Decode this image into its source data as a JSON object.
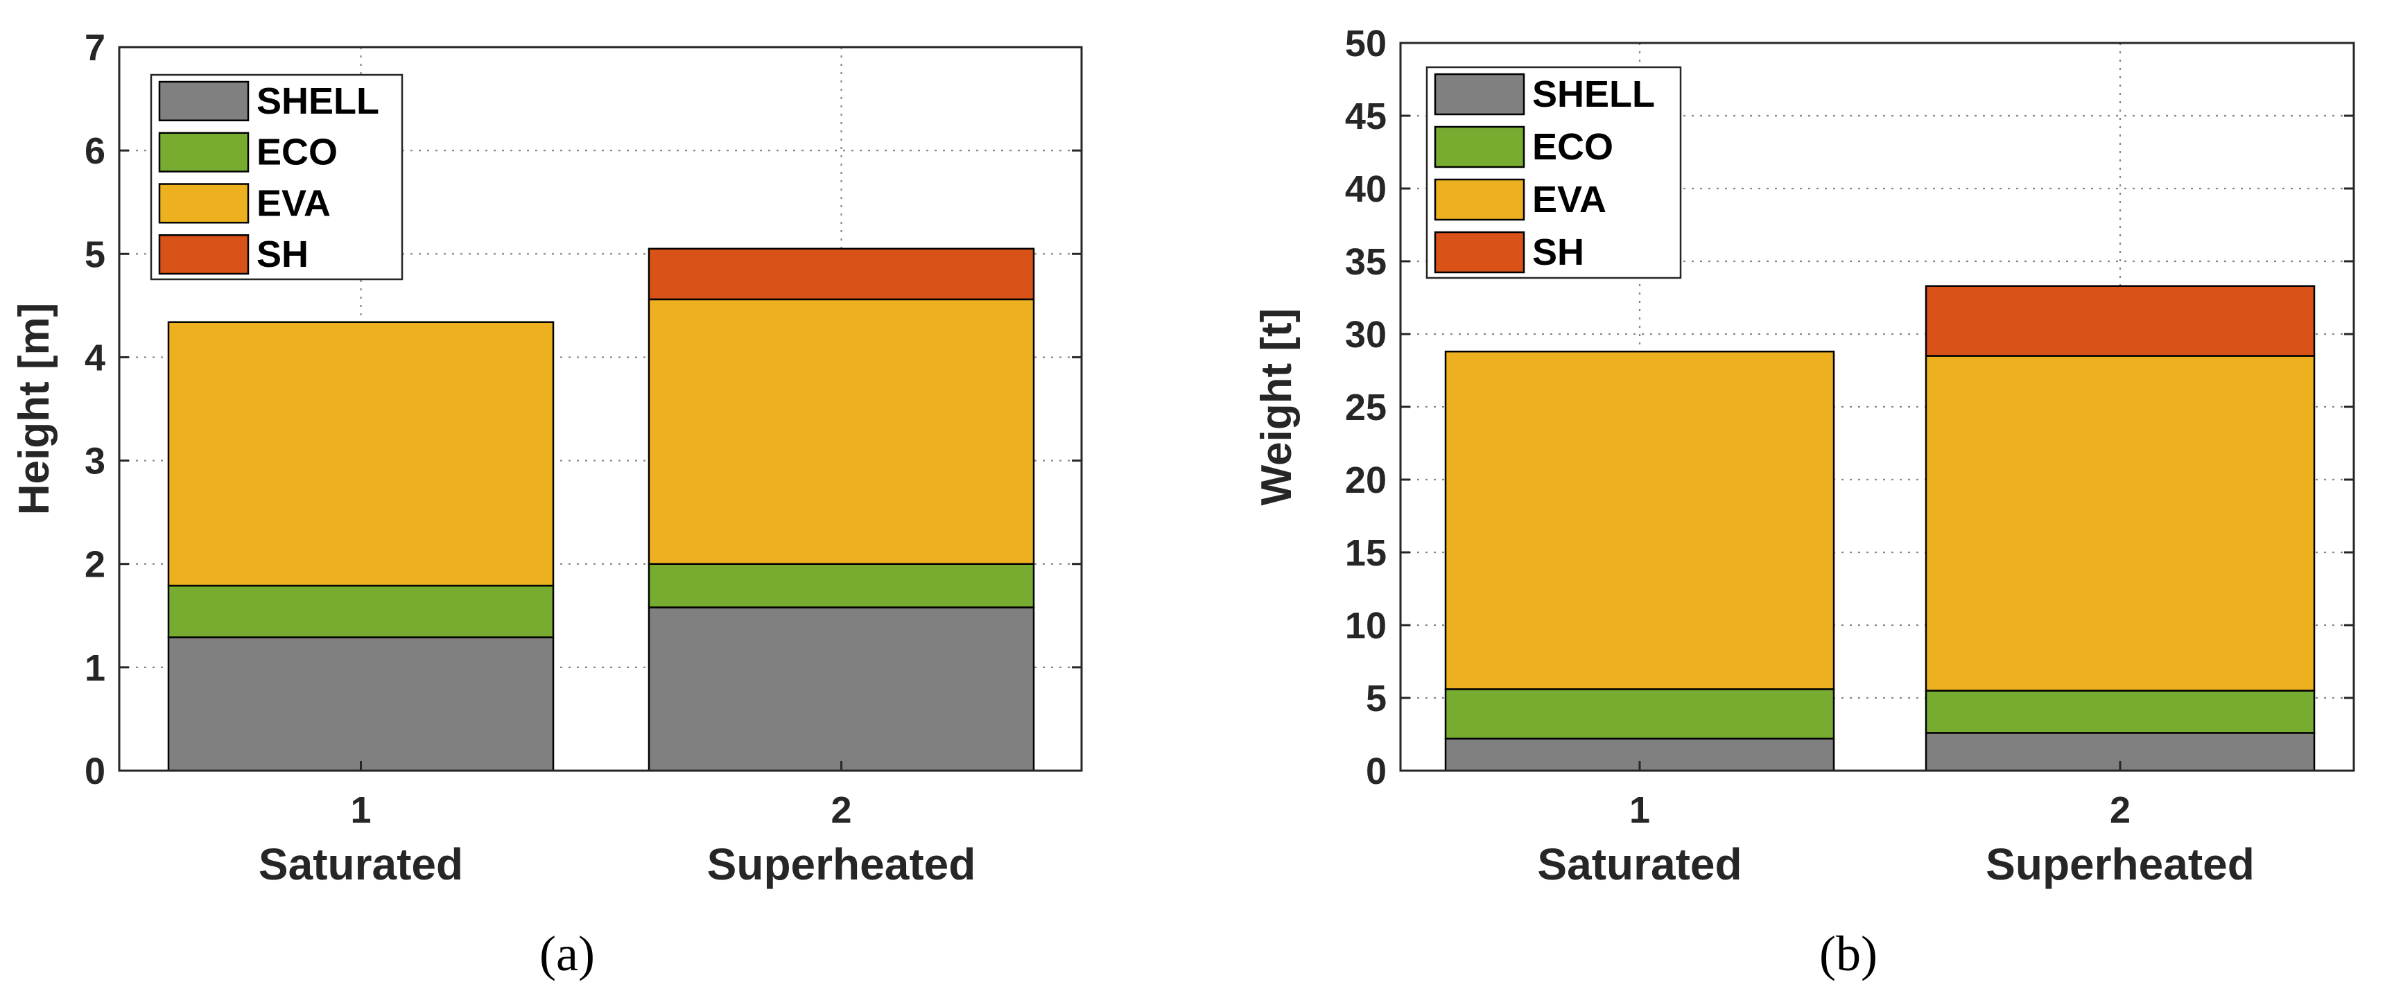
{
  "chart_data": [
    {
      "type": "bar",
      "stacked": true,
      "panel_label": "(a)",
      "ylabel": "Height [m]",
      "ylim": [
        0,
        7
      ],
      "yticks": [
        0,
        1,
        2,
        3,
        4,
        5,
        6,
        7
      ],
      "grid": true,
      "legend_position": "top-left",
      "categories": [
        "1",
        "2"
      ],
      "category_names": [
        "Saturated",
        "Superheated"
      ],
      "series": [
        {
          "name": "SHELL",
          "color": "#808080",
          "values": [
            1.29,
            1.58
          ]
        },
        {
          "name": "ECO",
          "color": "#77AC30",
          "values": [
            0.5,
            0.42
          ]
        },
        {
          "name": "EVA",
          "color": "#EDB120",
          "values": [
            2.55,
            2.56
          ]
        },
        {
          "name": "SH",
          "color": "#D95319",
          "values": [
            0.0,
            0.49
          ]
        }
      ]
    },
    {
      "type": "bar",
      "stacked": true,
      "panel_label": "(b)",
      "ylabel": "Weight [t]",
      "ylim": [
        0,
        50
      ],
      "yticks": [
        0,
        5,
        10,
        15,
        20,
        25,
        30,
        35,
        40,
        45,
        50
      ],
      "grid": true,
      "legend_position": "top-left",
      "categories": [
        "1",
        "2"
      ],
      "category_names": [
        "Saturated",
        "Superheated"
      ],
      "series": [
        {
          "name": "SHELL",
          "color": "#808080",
          "values": [
            2.2,
            2.6
          ]
        },
        {
          "name": "ECO",
          "color": "#77AC30",
          "values": [
            3.4,
            2.9
          ]
        },
        {
          "name": "EVA",
          "color": "#EDB120",
          "values": [
            23.2,
            23.0
          ]
        },
        {
          "name": "SH",
          "color": "#D95319",
          "values": [
            0.0,
            4.8
          ]
        }
      ]
    }
  ]
}
